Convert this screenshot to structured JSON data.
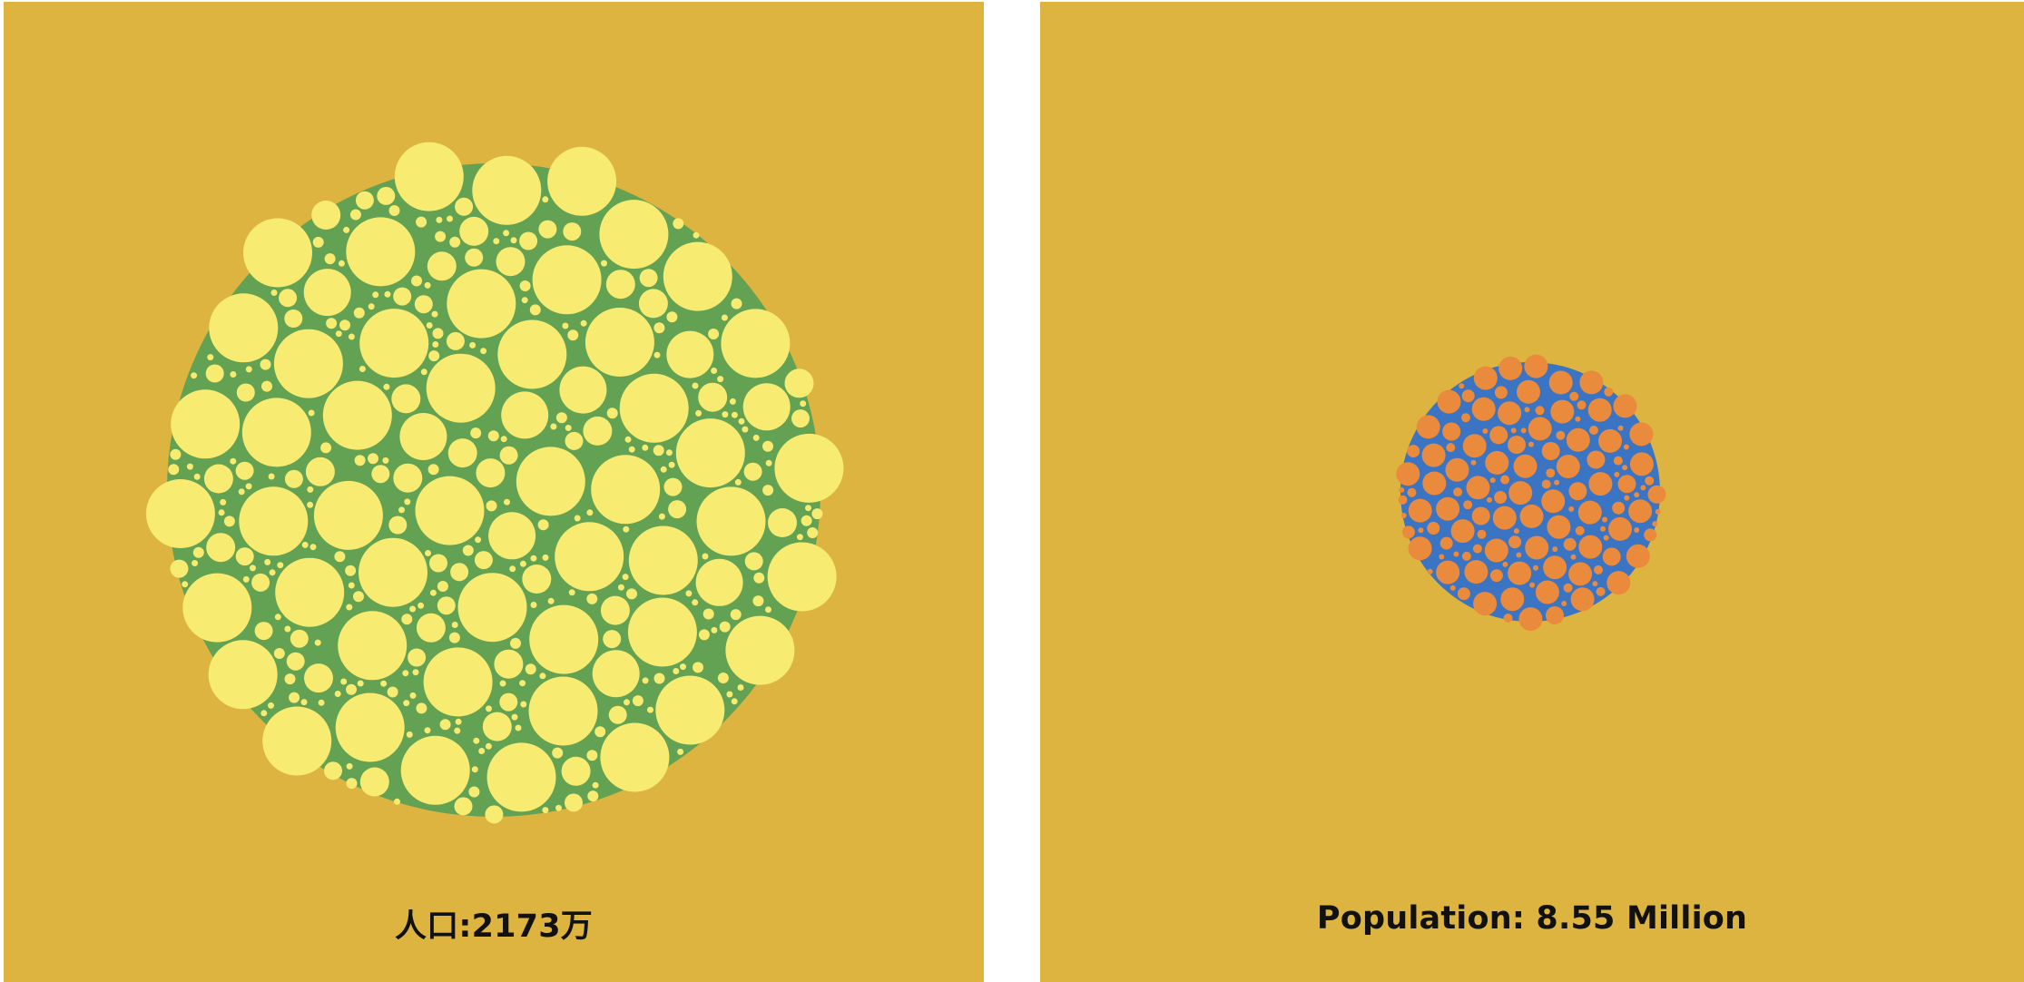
{
  "colors": {
    "background": "#DDB43F",
    "left_outer": "#63A153",
    "left_inner": "#F7EB72",
    "right_outer": "#3A74C2",
    "right_inner": "#EA8A3C"
  },
  "left": {
    "caption": "人口:2173万",
    "population_10k": 2173
  },
  "right": {
    "caption": "Population: 8.55 Million",
    "population_million": 8.55
  }
}
